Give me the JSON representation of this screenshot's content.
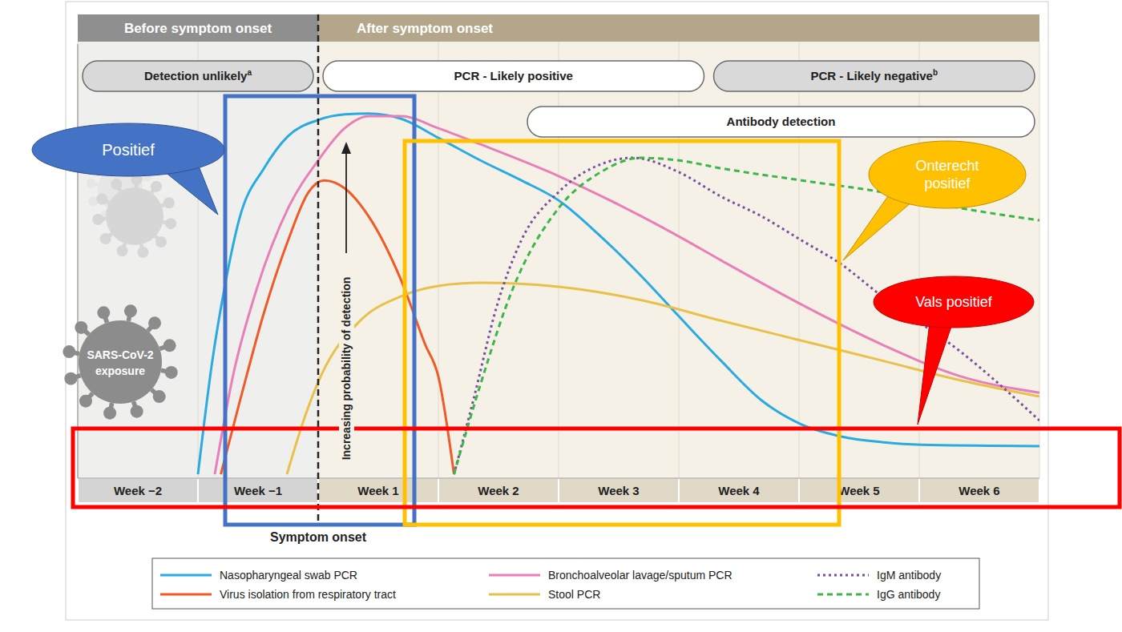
{
  "chart_data": {
    "type": "line",
    "phases": [
      {
        "label": "Before symptom onset",
        "from": -2,
        "to": 0,
        "color": "#8f8f8f"
      },
      {
        "label": "After symptom onset",
        "from": 0,
        "to": 6,
        "color": "#b3a68a"
      }
    ],
    "ranges": [
      {
        "label": "Detection unlikely",
        "note": "a",
        "from": -2,
        "to": 0,
        "color": "#d9d9d9"
      },
      {
        "label": "PCR - Likely positive",
        "from": 0,
        "to": 3.25,
        "color": "#ffffff"
      },
      {
        "label": "PCR - Likely negative",
        "note": "b",
        "from": 3.25,
        "to": 6,
        "color": "#d9d9d9"
      },
      {
        "label": "Antibody detection",
        "from": 1.7,
        "to": 6,
        "color": "#ffffff"
      }
    ],
    "ylabel": "Increasing probability of detection",
    "reference_lines": [
      {
        "x": 0,
        "label": "Symptom onset"
      }
    ],
    "icon_label": "SARS-CoV-2 exposure",
    "xlim": [
      -2,
      6
    ],
    "xticks": [
      {
        "value": -1.5,
        "label": "Week −2"
      },
      {
        "value": -0.5,
        "label": "Week −1"
      },
      {
        "value": 0.5,
        "label": "Week 1"
      },
      {
        "value": 1.5,
        "label": "Week 2"
      },
      {
        "value": 2.5,
        "label": "Week 3"
      },
      {
        "value": 3.5,
        "label": "Week 4"
      },
      {
        "value": 4.5,
        "label": "Week 5"
      },
      {
        "value": 5.5,
        "label": "Week 6"
      }
    ],
    "ylim": [
      0,
      100
    ],
    "tick_labels": "x",
    "grid": true,
    "legend": "bottom",
    "series": [
      {
        "name": "Nasopharyngeal swab PCR",
        "color": "#29abe2",
        "line_style": "solid",
        "x": [
          -1,
          -0.88,
          -0.78,
          -0.65,
          -0.45,
          -0.25,
          0,
          0.22,
          0.42,
          0.69,
          1,
          1.35,
          1.69,
          2,
          2.35,
          2.69,
          3,
          3.35,
          3.69,
          4.02,
          4.35,
          4.69,
          5.02,
          6
        ],
        "values": [
          0.9,
          27.1,
          43.7,
          60.3,
          71.4,
          78.8,
          82.5,
          83.8,
          84.0,
          82.8,
          78.4,
          73.2,
          68.6,
          64.0,
          55.7,
          46.5,
          37.3,
          27.1,
          17.9,
          12.4,
          9.6,
          8.3,
          7.7,
          7.4
        ]
      },
      {
        "name": "Virus isolation from respiratory tract",
        "color": "#f05a28",
        "line_style": "solid",
        "x": [
          -0.81,
          -0.65,
          -0.45,
          -0.25,
          -0.08,
          0.05,
          0.22,
          0.42,
          0.69,
          0.89,
          1,
          1.13
        ],
        "values": [
          0.9,
          17.9,
          38.2,
          54.8,
          65.9,
          68.6,
          66.8,
          60.3,
          45.6,
          30.8,
          23.4,
          0.9
        ]
      },
      {
        "name": "Bronchoalveolar lavage/sputum PCR",
        "color": "#e97fb8",
        "line_style": "solid",
        "x": [
          -0.86,
          -0.71,
          -0.51,
          -0.25,
          0,
          0.22,
          0.42,
          0.69,
          1,
          1.35,
          2,
          2.69,
          3,
          3.35,
          4.02,
          4.69,
          5.35,
          6
        ],
        "values": [
          0.9,
          23.4,
          43.7,
          62.2,
          73.2,
          80.6,
          83.4,
          83.4,
          80.6,
          76.9,
          69.6,
          60.3,
          55.7,
          50.2,
          40.0,
          30.8,
          23.4,
          19.7
        ]
      },
      {
        "name": "Stool PCR",
        "color": "#e8c04a",
        "line_style": "solid",
        "x": [
          -0.26,
          -0.11,
          0.02,
          0.35,
          0.69,
          1,
          1.35,
          2,
          2.69,
          3.35,
          4.02,
          4.69,
          5.35,
          6
        ],
        "values": [
          0.9,
          14.2,
          23.4,
          36.3,
          41.9,
          44.3,
          45.0,
          44.1,
          41.0,
          36.3,
          31.7,
          27.1,
          22.5,
          18.8
        ]
      },
      {
        "name": "IgM antibody",
        "color": "#7b4fa0",
        "line_style": "dotted",
        "x": [
          1.13,
          1.29,
          1.49,
          1.69,
          2,
          2.35,
          2.62,
          3,
          3.35,
          3.69,
          4.02,
          4.35,
          4.69,
          5.35,
          6
        ],
        "values": [
          0.9,
          17.9,
          40.0,
          54.8,
          65.9,
          72.3,
          73.8,
          70.5,
          64.9,
          60.3,
          54.8,
          49.3,
          41.9,
          29.0,
          13.3
        ]
      },
      {
        "name": "IgG antibody",
        "color": "#3cb54a",
        "line_style": "dashed",
        "x": [
          1.13,
          1.35,
          1.62,
          2,
          2.35,
          2.69,
          3,
          3.35,
          4.02,
          4.69,
          5.35,
          6
        ],
        "values": [
          0.9,
          21.6,
          43.7,
          62.2,
          70.5,
          73.8,
          73.2,
          71.4,
          68.6,
          65.9,
          62.2,
          59.4
        ]
      }
    ],
    "annotations": [
      {
        "text": "Positief",
        "color": "#4472c4"
      },
      {
        "text": "Onterecht positief",
        "color": "#ffc000"
      },
      {
        "text": "Vals positief",
        "color": "#ff0000"
      }
    ]
  }
}
